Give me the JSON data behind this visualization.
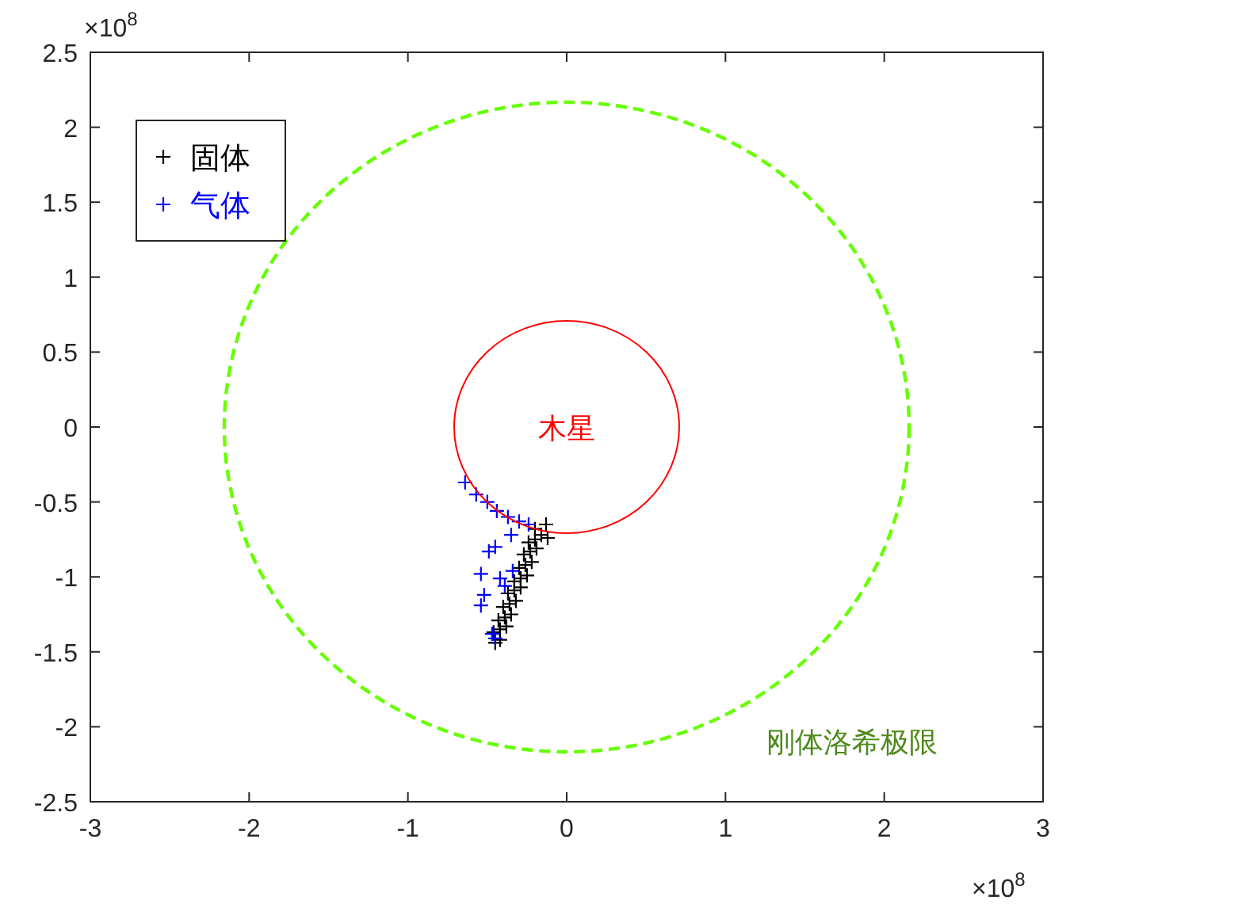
{
  "chart_data": {
    "type": "scatter",
    "xlim": [
      -3,
      3
    ],
    "ylim": [
      -2.5,
      2.5
    ],
    "xticks": [
      -3,
      -2,
      -1,
      0,
      1,
      2,
      3
    ],
    "yticks": [
      -2.5,
      -2,
      -1.5,
      -1,
      -0.5,
      0,
      0.5,
      1,
      1.5,
      2,
      2.5
    ],
    "annotations": [
      "×10$^{8}$",
      "×10$^{8}$",
      "木星",
      "刚体洛希极限"
    ],
    "legend": "top left",
    "grid": false,
    "series": [
      {
        "name": "固体",
        "type": "scatter",
        "marker": "cross",
        "color": "#000000",
        "x": [
          -0.12,
          -0.2,
          -0.23,
          -0.26,
          -0.29,
          -0.33,
          -0.36,
          -0.39,
          -0.42,
          -0.45,
          -0.2,
          -0.24,
          -0.27,
          -0.3,
          -0.33,
          -0.37,
          -0.4,
          -0.43,
          -0.46,
          -0.13,
          -0.16,
          -0.19,
          -0.22,
          -0.25,
          -0.29,
          -0.32,
          -0.35,
          -0.38,
          -0.42
        ],
        "values": [
          -0.74,
          -0.75,
          -0.83,
          -0.92,
          -1.01,
          -1.09,
          -1.18,
          -1.27,
          -1.35,
          -1.44,
          -0.68,
          -0.77,
          -0.85,
          -0.94,
          -1.03,
          -1.11,
          -1.2,
          -1.29,
          -1.37,
          -0.65,
          -0.72,
          -0.81,
          -0.9,
          -0.99,
          -1.07,
          -1.16,
          -1.25,
          -1.33,
          -1.42
        ]
      },
      {
        "name": "气体",
        "type": "scatter",
        "marker": "cross",
        "color": "#0000ff",
        "x": [
          -0.64,
          -0.57,
          -0.5,
          -0.44,
          -0.37,
          -0.3,
          -0.24,
          -0.35,
          -0.45,
          -0.49,
          -0.54,
          -0.42,
          -0.34,
          -0.52,
          -0.54,
          -0.39,
          -0.47,
          -0.45
        ],
        "values": [
          -0.37,
          -0.45,
          -0.5,
          -0.56,
          -0.6,
          -0.63,
          -0.65,
          -0.72,
          -0.8,
          -0.83,
          -0.98,
          -1.01,
          -0.96,
          -1.12,
          -1.19,
          -1.06,
          -1.38,
          -1.41
        ]
      }
    ]
  }
}
